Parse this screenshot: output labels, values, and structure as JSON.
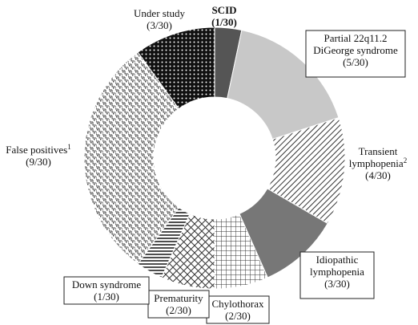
{
  "chart_data": {
    "type": "pie",
    "variant": "donut",
    "total": 30,
    "slices": [
      {
        "name": "SCID",
        "value": 1,
        "label_lines": [
          "SCID",
          "(1/30)"
        ],
        "bold": true,
        "boxed": false,
        "fill": "#555555",
        "pattern": "solid"
      },
      {
        "name": "Partial 22q11.2 DiGeorge syndrome",
        "value": 5,
        "label_lines": [
          "Partial 22q11.2",
          "DiGeorge syndrome",
          "(5/30)"
        ],
        "bold": false,
        "boxed": true,
        "fill": "#c8c8c8",
        "pattern": "solid"
      },
      {
        "name": "Transient lymphopenia",
        "value": 4,
        "label_lines": [
          "Transient",
          "lymphopenia",
          "(4/30)"
        ],
        "superscript": "2",
        "bold": false,
        "boxed": false,
        "fill": "#ffffff",
        "pattern": "diagonal"
      },
      {
        "name": "Idiopathic lymphopenia",
        "value": 3,
        "label_lines": [
          "Idiopathic",
          "lymphopenia",
          "(3/30)"
        ],
        "bold": false,
        "boxed": true,
        "fill": "#777777",
        "pattern": "solid"
      },
      {
        "name": "Chylothorax",
        "value": 2,
        "label_lines": [
          "Chylothorax",
          "(2/30)"
        ],
        "bold": false,
        "boxed": true,
        "fill": "#ffffff",
        "pattern": "grid"
      },
      {
        "name": "Prematurity",
        "value": 2,
        "label_lines": [
          "Prematurity",
          "(2/30)"
        ],
        "bold": false,
        "boxed": true,
        "fill": "#ffffff",
        "pattern": "crosshatch"
      },
      {
        "name": "Down syndrome",
        "value": 1,
        "label_lines": [
          "Down syndrome",
          "(1/30)"
        ],
        "bold": false,
        "boxed": true,
        "fill": "#ffffff",
        "pattern": "horizontal"
      },
      {
        "name": "False positives",
        "value": 9,
        "label_lines": [
          "False positives",
          "(9/30)"
        ],
        "superscript": "1",
        "bold": false,
        "boxed": false,
        "fill": "#ffffff",
        "pattern": "zigzag"
      },
      {
        "name": "Under study",
        "value": 3,
        "label_lines": [
          "Under study",
          "(3/30)"
        ],
        "bold": false,
        "boxed": false,
        "fill": "#111111",
        "pattern": "dots"
      }
    ]
  }
}
